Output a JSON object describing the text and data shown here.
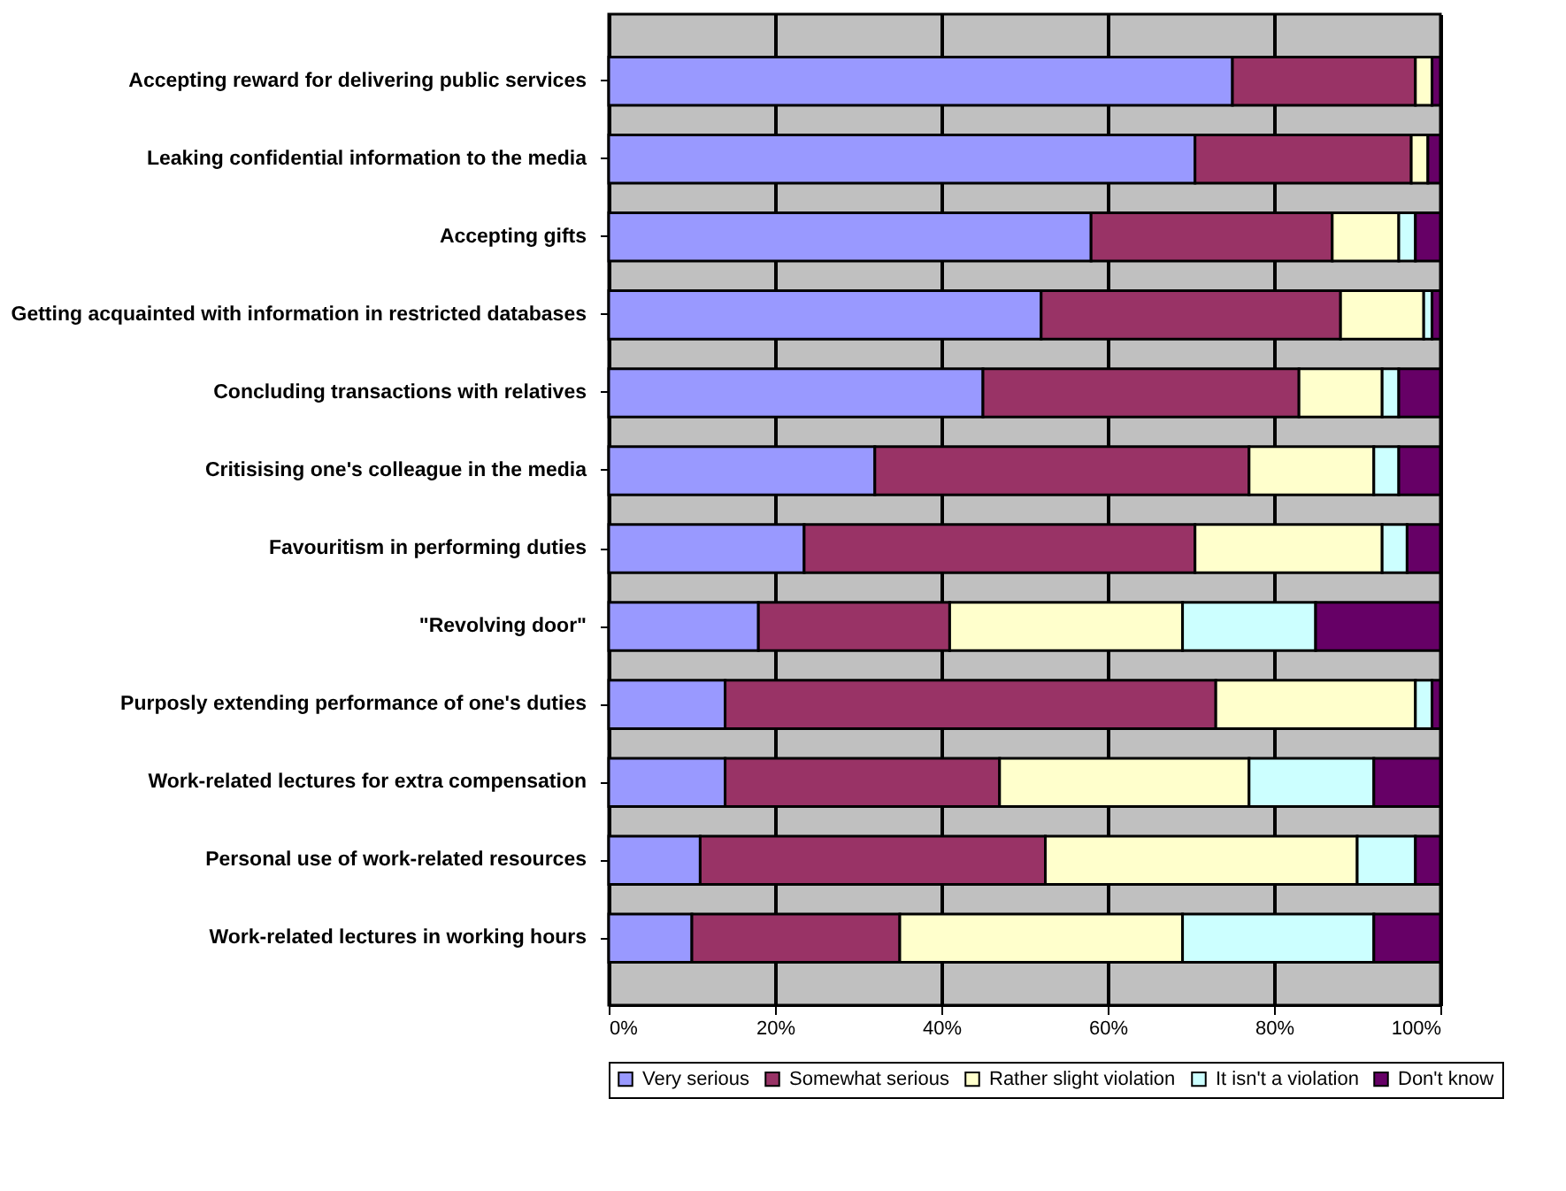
{
  "chart_data": {
    "type": "bar",
    "orientation": "horizontal",
    "stacked": true,
    "categories": [
      "Accepting reward for delivering public services",
      "Leaking confidential information to the media",
      "Accepting gifts",
      "Getting acquainted with information in restricted databases",
      "Concluding transactions with relatives",
      "Critisising one's colleague in the media",
      "Favouritism in performing duties",
      "\"Revolving door\"",
      "Purposly extending performance of one's duties",
      "Work-related lectures for extra compensation",
      "Personal use of work-related resources",
      "Work-related lectures in working hours"
    ],
    "series": [
      {
        "name": "Very serious",
        "color": "#9999ff",
        "values": [
          75,
          70.5,
          58,
          52,
          45,
          32,
          23.5,
          18,
          14,
          14,
          11,
          10
        ]
      },
      {
        "name": "Somewhat serious",
        "color": "#993366",
        "values": [
          22,
          26,
          29,
          36,
          38,
          45,
          47,
          23,
          59,
          33,
          41.5,
          25
        ]
      },
      {
        "name": "Rather slight violation",
        "color": "#ffffcc",
        "values": [
          2,
          2,
          8,
          10,
          10,
          15,
          22.5,
          28,
          24,
          30,
          37.5,
          34
        ]
      },
      {
        "name": "It isn't a violation",
        "color": "#ccffff",
        "values": [
          0,
          0,
          2,
          1,
          2,
          3,
          3,
          16,
          2,
          15,
          7,
          23
        ]
      },
      {
        "name": "Don't know",
        "color": "#660066",
        "values": [
          1,
          1.5,
          3,
          1,
          5,
          5,
          4,
          15,
          1,
          8,
          3,
          8
        ]
      }
    ],
    "xlim": [
      0,
      100
    ],
    "xticks": [
      {
        "value": 0,
        "label": "0%"
      },
      {
        "value": 20,
        "label": "20%"
      },
      {
        "value": 40,
        "label": "40%"
      },
      {
        "value": 60,
        "label": "60%"
      },
      {
        "value": 80,
        "label": "80%"
      },
      {
        "value": 100,
        "label": "100%"
      }
    ],
    "grid": "x",
    "legend": "bottom"
  }
}
